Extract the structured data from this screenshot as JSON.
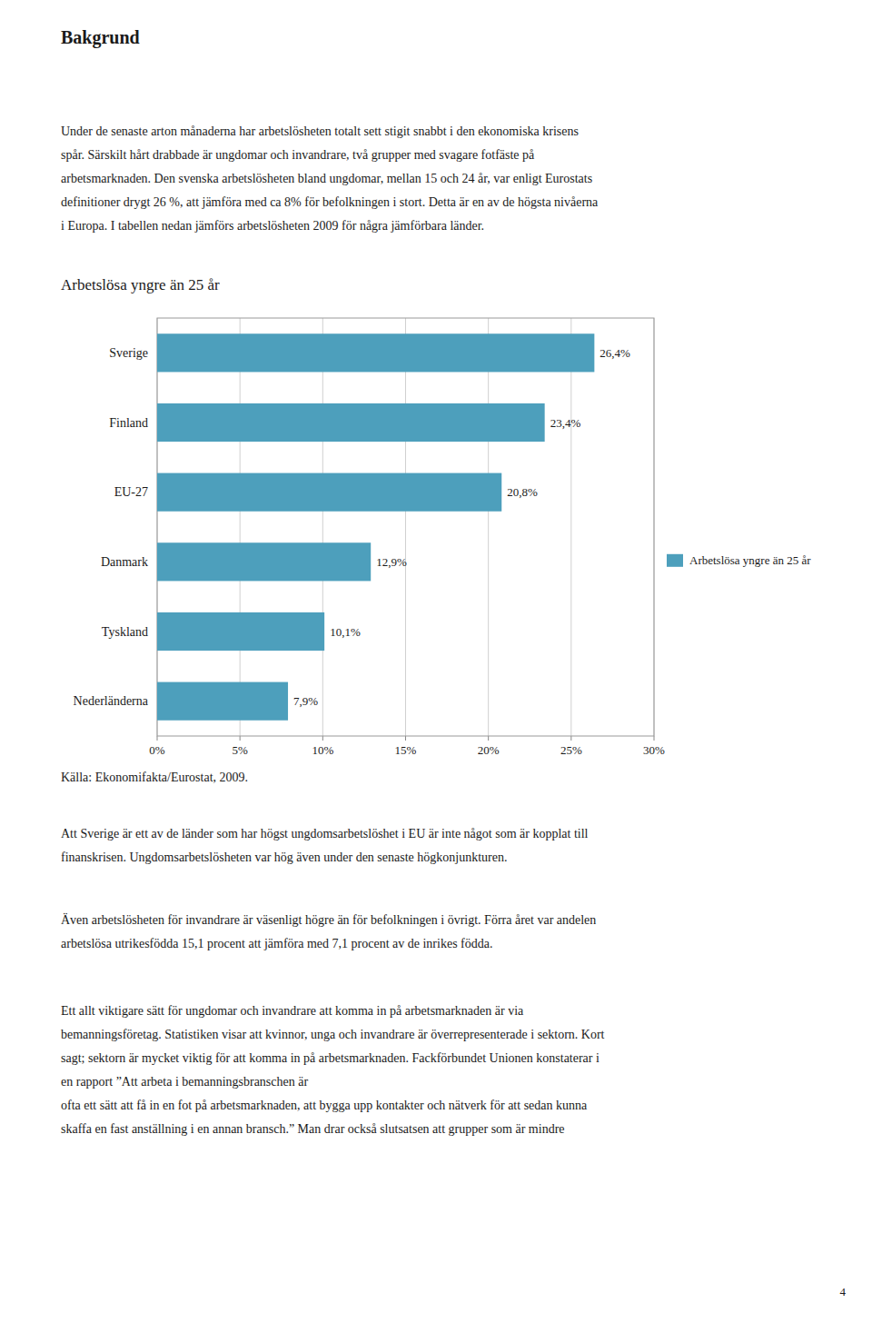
{
  "heading": "Bakgrund",
  "intro_text": [
    "Under de senaste arton månaderna har arbetslösheten totalt sett stigit snabbt i den ekonomiska krisens",
    "spår. Särskilt hårt drabbade är ungdomar och invandrare, två grupper med svagare fotfäste på",
    "arbetsmarknaden. Den svenska arbetslösheten bland ungdomar, mellan 15 och 24 år, var enligt Eurostats",
    "definitioner drygt 26 %, att jämföra med ca 8% för befolkningen i stort. Detta är en av de högsta nivåerna",
    "i Europa. I tabellen nedan jämförs arbetslösheten 2009 för några jämförbara länder."
  ],
  "chart_data": {
    "type": "bar",
    "orientation": "horizontal",
    "title": "Arbetslösa yngre än 25 år",
    "categories": [
      "Sverige",
      "Finland",
      "EU-27",
      "Danmark",
      "Tyskland",
      "Nederländerna"
    ],
    "series": [
      {
        "name": "Arbetslösa yngre än 25 år",
        "color": "#4d9fbc",
        "values": [
          26.4,
          23.4,
          20.8,
          12.9,
          10.1,
          7.9
        ],
        "value_labels": [
          "26,4%",
          "23,4%",
          "20,8%",
          "12,9%",
          "10,1%",
          "7,9%"
        ]
      }
    ],
    "data_labels": true,
    "xlim": [
      0,
      30
    ],
    "xticks": [
      {
        "value": 0,
        "label": "0%"
      },
      {
        "value": 5,
        "label": "5%"
      },
      {
        "value": 10,
        "label": "10%"
      },
      {
        "value": 15,
        "label": "15%"
      },
      {
        "value": 20,
        "label": "20%"
      },
      {
        "value": 25,
        "label": "25%"
      },
      {
        "value": 30,
        "label": "30%"
      }
    ],
    "grid": true,
    "legend": "right"
  },
  "source": "Källa: Ekonomifakta/Eurostat, 2009.",
  "post_text_1": [
    "Att Sverige är ett av de länder som har högst ungdomsarbetslöshet i EU är inte något som är kopplat till",
    "finanskrisen. Ungdomsarbetslösheten var hög även under den senaste högkonjunkturen."
  ],
  "post_text_2": [
    "Även arbetslösheten för invandrare är väsenligt högre än för befolkningen i övrigt. Förra året var andelen",
    "arbetslösa utrikesfödda 15,1 procent att jämföra med 7,1 procent av de inrikes födda."
  ],
  "post_text_3": [
    "Ett allt viktigare sätt för ungdomar och invandrare att komma in på arbetsmarknaden är via",
    "bemanningsföretag. Statistiken visar att kvinnor, unga och invandrare är överrepresenterade i sektorn. Kort",
    "sagt; sektorn är mycket viktig för att komma in på arbetsmarknaden. Fackförbundet Unionen konstaterar i",
    "en rapport ”Att arbeta i bemanningsbranschen är",
    "ofta ett sätt att få in en fot på arbetsmarknaden, att bygga upp kontakter och nätverk för att sedan kunna",
    "skaffa en fast anställning i en annan bransch.” Man drar också slutsatsen att grupper som är mindre"
  ],
  "page_number": "4"
}
